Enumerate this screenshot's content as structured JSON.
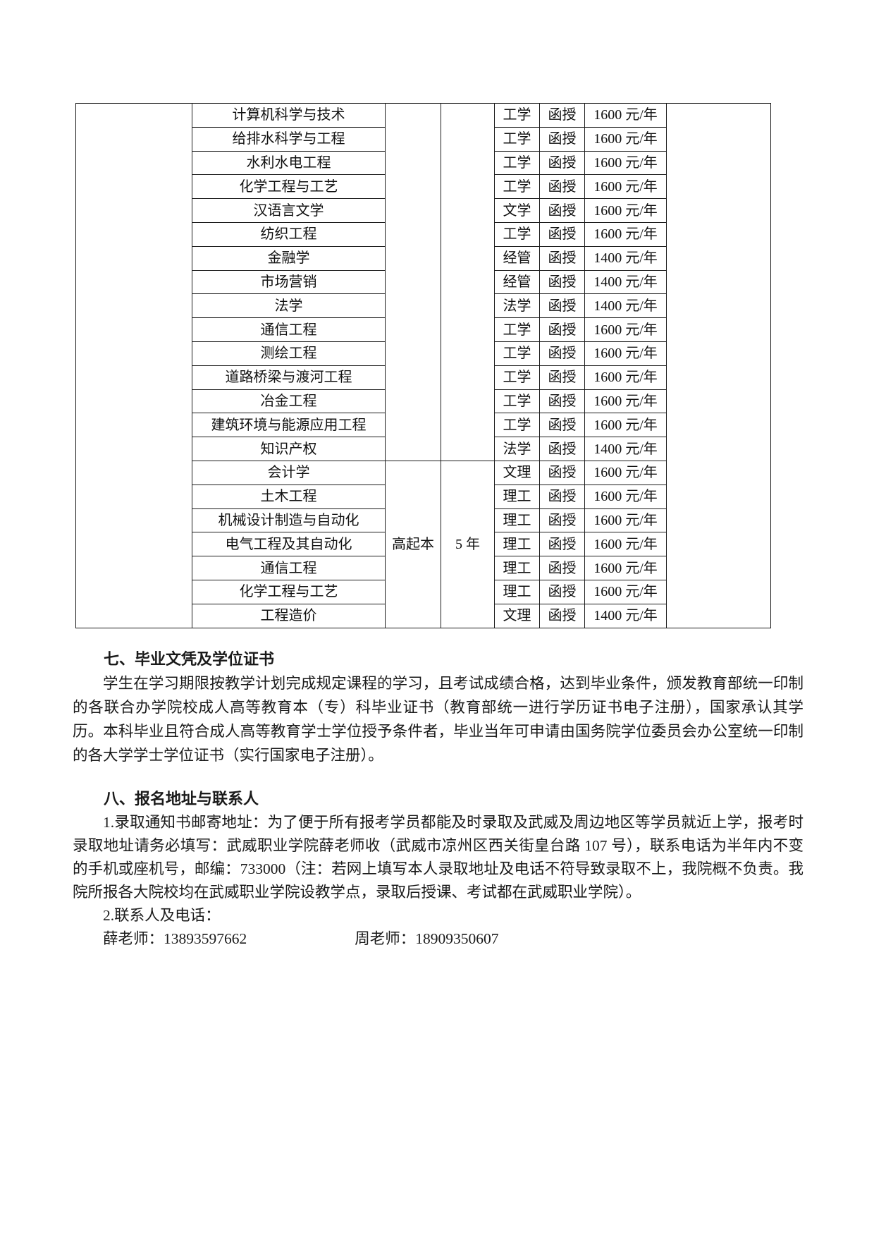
{
  "document": {
    "background_color": "#ffffff",
    "text_color": "#1a1a1a",
    "table_border_color": "#1c1c1c"
  },
  "table": {
    "columns": [
      "spacer-left",
      "major",
      "level",
      "duration",
      "category",
      "form",
      "tuition",
      "spacer-right"
    ],
    "groups": [
      {
        "level": "",
        "duration": "",
        "rows": [
          {
            "major": "计算机科学与技术",
            "category": "工学",
            "form": "函授",
            "tuition": "1600 元/年"
          },
          {
            "major": "给排水科学与工程",
            "category": "工学",
            "form": "函授",
            "tuition": "1600 元/年"
          },
          {
            "major": "水利水电工程",
            "category": "工学",
            "form": "函授",
            "tuition": "1600 元/年"
          },
          {
            "major": "化学工程与工艺",
            "category": "工学",
            "form": "函授",
            "tuition": "1600 元/年"
          },
          {
            "major": "汉语言文学",
            "category": "文学",
            "form": "函授",
            "tuition": "1600 元/年"
          },
          {
            "major": "纺织工程",
            "category": "工学",
            "form": "函授",
            "tuition": "1600 元/年"
          },
          {
            "major": "金融学",
            "category": "经管",
            "form": "函授",
            "tuition": "1400 元/年"
          },
          {
            "major": "市场营销",
            "category": "经管",
            "form": "函授",
            "tuition": "1400 元/年"
          },
          {
            "major": "法学",
            "category": "法学",
            "form": "函授",
            "tuition": "1400 元/年"
          },
          {
            "major": "通信工程",
            "category": "工学",
            "form": "函授",
            "tuition": "1600 元/年"
          },
          {
            "major": "测绘工程",
            "category": "工学",
            "form": "函授",
            "tuition": "1600 元/年"
          },
          {
            "major": "道路桥梁与渡河工程",
            "category": "工学",
            "form": "函授",
            "tuition": "1600 元/年"
          },
          {
            "major": "冶金工程",
            "category": "工学",
            "form": "函授",
            "tuition": "1600 元/年"
          },
          {
            "major": "建筑环境与能源应用工程",
            "category": "工学",
            "form": "函授",
            "tuition": "1600 元/年"
          },
          {
            "major": "知识产权",
            "category": "法学",
            "form": "函授",
            "tuition": "1400 元/年"
          }
        ]
      },
      {
        "level": "高起本",
        "duration": "5 年",
        "rows": [
          {
            "major": "会计学",
            "category": "文理",
            "form": "函授",
            "tuition": "1600 元/年"
          },
          {
            "major": "土木工程",
            "category": "理工",
            "form": "函授",
            "tuition": "1600 元/年"
          },
          {
            "major": "机械设计制造与自动化",
            "category": "理工",
            "form": "函授",
            "tuition": "1600 元/年"
          },
          {
            "major": "电气工程及其自动化",
            "category": "理工",
            "form": "函授",
            "tuition": "1600 元/年"
          },
          {
            "major": "通信工程",
            "category": "理工",
            "form": "函授",
            "tuition": "1600 元/年"
          },
          {
            "major": "化学工程与工艺",
            "category": "理工",
            "form": "函授",
            "tuition": "1600 元/年"
          },
          {
            "major": "工程造价",
            "category": "文理",
            "form": "函授",
            "tuition": "1400 元/年"
          }
        ]
      }
    ]
  },
  "section7": {
    "heading": "七、毕业文凭及学位证书",
    "paragraph": "学生在学习期限按教学计划完成规定课程的学习，且考试成绩合格，达到毕业条件，颁发教育部统一印制的各联合办学院校成人高等教育本（专）科毕业证书（教育部统一进行学历证书电子注册），国家承认其学历。本科毕业且符合成人高等教育学士学位授予条件者，毕业当年可申请由国务院学位委员会办公室统一印制的各大学学士学位证书（实行国家电子注册）。"
  },
  "section8": {
    "heading": "八、报名地址与联系人",
    "paragraph1": "1.录取通知书邮寄地址：为了便于所有报考学员都能及时录取及武威及周边地区等学员就近上学，报考时录取地址请务必填写：武威职业学院薛老师收（武威市凉州区西关街皇台路 107 号），联系电话为半年内不变的手机或座机号，邮编：733000（注：若网上填写本人录取地址及电话不符导致录取不上，我院概不负责。我院所报各大院校均在武威职业学院设教学点，录取后授课、考试都在武威职业学院）。",
    "line2": "2.联系人及电话：",
    "contact1": "薛老师：13893597662",
    "contact2": "周老师：18909350607"
  }
}
